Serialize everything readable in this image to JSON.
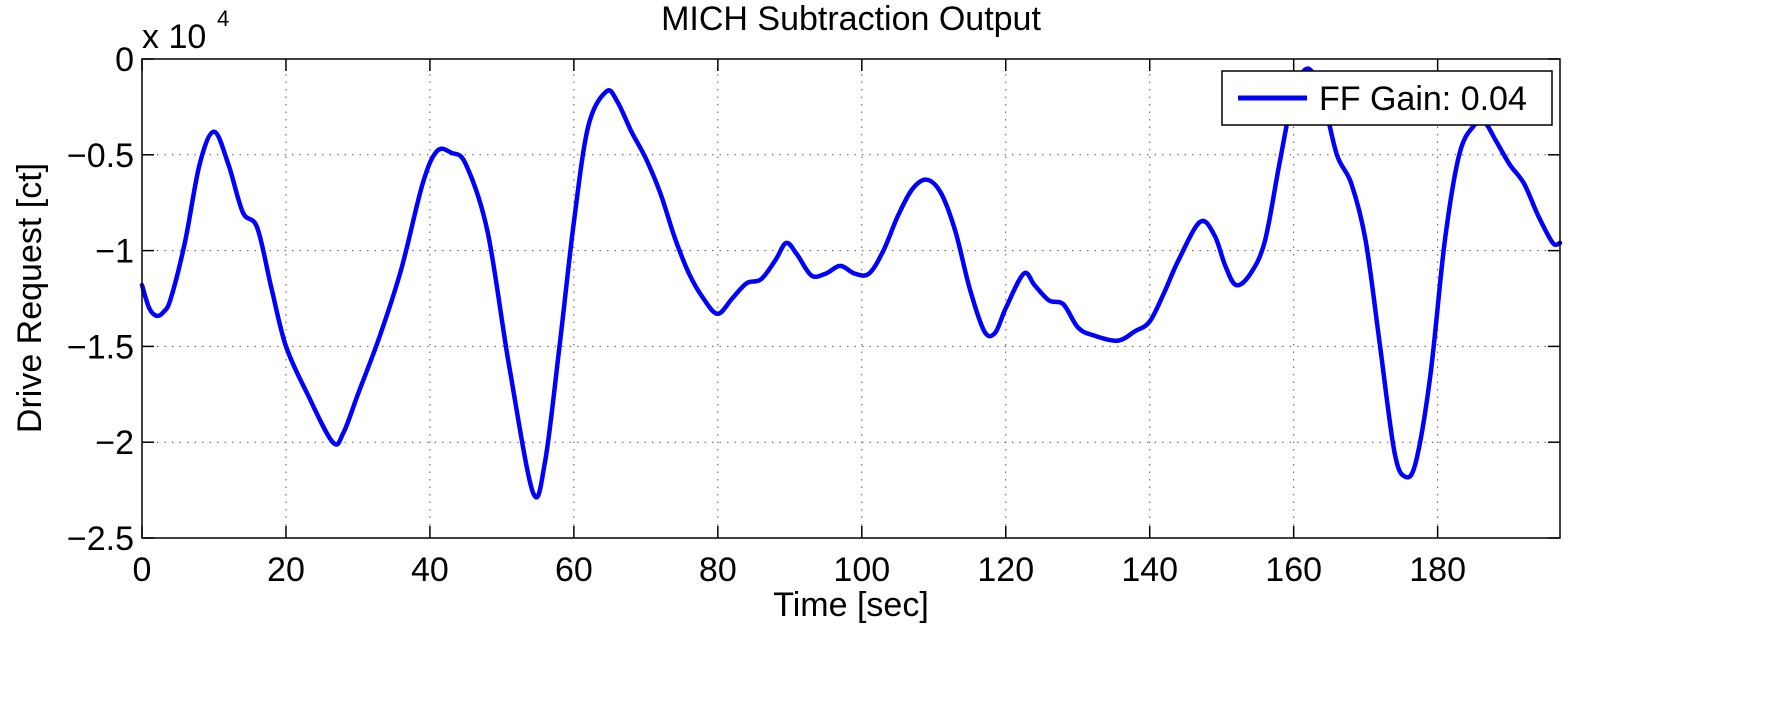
{
  "chart_data": {
    "type": "line",
    "title": "MICH Subtraction Output",
    "xlabel": "Time [sec]",
    "ylabel": "Drive Request [ct]",
    "y_exponent_label": "x 10",
    "y_exponent_power": "4",
    "xlim": [
      0,
      197
    ],
    "ylim": [
      -2.5,
      0
    ],
    "x_ticks": [
      0,
      20,
      40,
      60,
      80,
      100,
      120,
      140,
      160,
      180
    ],
    "x_tick_labels": [
      "0",
      "20",
      "40",
      "60",
      "80",
      "100",
      "120",
      "140",
      "160",
      "180"
    ],
    "y_ticks": [
      0,
      -0.5,
      -1,
      -1.5,
      -2,
      -2.5
    ],
    "y_tick_labels": [
      "0",
      "−0.5",
      "−1",
      "−1.5",
      "−2",
      "−2.5"
    ],
    "grid": true,
    "legend_position": "top-right",
    "series": [
      {
        "name": "FF Gain: 0.04",
        "color": "#0000ff",
        "x": [
          0,
          1,
          2,
          3,
          4,
          6,
          8,
          10,
          12,
          14,
          16,
          18,
          20,
          23,
          26.5,
          28,
          30,
          33,
          36,
          39,
          41,
          43,
          45,
          48,
          51,
          54.3,
          56,
          58,
          60,
          62,
          64.5,
          66,
          68,
          70,
          72,
          74,
          76,
          78,
          80,
          82,
          84,
          86,
          88,
          89.5,
          91,
          93,
          95,
          97,
          99,
          101,
          103,
          105,
          107,
          109,
          111,
          113,
          115,
          117,
          118.5,
          120,
          122.5,
          124,
          126,
          128,
          130,
          132,
          135.5,
          138,
          140,
          142,
          144,
          147,
          149,
          150.5,
          152,
          154,
          156,
          158,
          160,
          162,
          164,
          166,
          168,
          170,
          172,
          174,
          175.5,
          177,
          179,
          181,
          183,
          185,
          186.5,
          188,
          190,
          192,
          194,
          196,
          197
        ],
        "y": [
          -1.18,
          -1.3,
          -1.34,
          -1.32,
          -1.25,
          -0.95,
          -0.55,
          -0.38,
          -0.55,
          -0.8,
          -0.88,
          -1.2,
          -1.5,
          -1.75,
          -2.0,
          -1.95,
          -1.75,
          -1.45,
          -1.1,
          -0.65,
          -0.48,
          -0.49,
          -0.55,
          -0.9,
          -1.6,
          -2.26,
          -2.1,
          -1.5,
          -0.85,
          -0.35,
          -0.17,
          -0.22,
          -0.38,
          -0.52,
          -0.7,
          -0.93,
          -1.12,
          -1.25,
          -1.33,
          -1.25,
          -1.17,
          -1.15,
          -1.05,
          -0.96,
          -1.02,
          -1.13,
          -1.12,
          -1.08,
          -1.12,
          -1.12,
          -1.0,
          -0.82,
          -0.68,
          -0.63,
          -0.7,
          -0.9,
          -1.2,
          -1.42,
          -1.43,
          -1.3,
          -1.12,
          -1.18,
          -1.26,
          -1.28,
          -1.4,
          -1.44,
          -1.47,
          -1.42,
          -1.37,
          -1.22,
          -1.05,
          -0.85,
          -0.92,
          -1.08,
          -1.18,
          -1.12,
          -0.95,
          -0.55,
          -0.18,
          -0.05,
          -0.2,
          -0.5,
          -0.65,
          -0.95,
          -1.5,
          -2.05,
          -2.18,
          -2.1,
          -1.65,
          -0.95,
          -0.5,
          -0.35,
          -0.33,
          -0.42,
          -0.55,
          -0.65,
          -0.82,
          -0.96,
          -0.96
        ]
      }
    ]
  }
}
